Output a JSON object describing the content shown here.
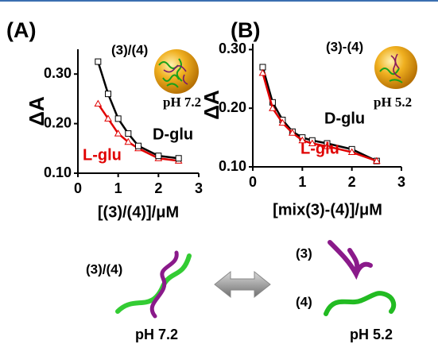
{
  "chart_data": [
    {
      "type": "line",
      "panel": "(A)",
      "subtitle": "(3)/(4)",
      "annotation": "pH 7.2",
      "x_label": "[(3)/(4)]/μM",
      "y_label": "ΔA",
      "x": [
        0.5,
        0.75,
        1.0,
        1.25,
        1.5,
        2.0,
        2.5
      ],
      "series": [
        {
          "name": "L-glu",
          "color": "#e00000",
          "marker": "triangle",
          "values": [
            0.24,
            0.21,
            0.18,
            0.163,
            0.15,
            0.13,
            0.125
          ]
        },
        {
          "name": "D-glu",
          "color": "#000000",
          "marker": "square",
          "values": [
            0.325,
            0.26,
            0.21,
            0.18,
            0.155,
            0.135,
            0.13
          ]
        }
      ],
      "xlim": [
        0,
        3
      ],
      "xticks": [
        0,
        1,
        2,
        3
      ],
      "ylim": [
        0.1,
        0.35
      ],
      "yticks": [
        {
          "value": 0.1,
          "label": "0.10"
        },
        {
          "value": 0.2,
          "label": "0.20"
        },
        {
          "value": 0.3,
          "label": "0.30"
        }
      ]
    },
    {
      "type": "line",
      "panel": "(B)",
      "subtitle": "(3)-(4)",
      "annotation": "pH 5.2",
      "x_label": "[mix(3)-(4)]/μM",
      "y_label": "ΔA",
      "x": [
        0.2,
        0.4,
        0.6,
        0.8,
        1.0,
        1.2,
        1.5,
        2.0,
        2.5
      ],
      "series": [
        {
          "name": "D-glu",
          "color": "#000000",
          "marker": "square",
          "values": [
            0.27,
            0.21,
            0.18,
            0.16,
            0.15,
            0.145,
            0.14,
            0.13,
            0.11
          ]
        },
        {
          "name": "L-glu",
          "color": "#e00000",
          "marker": "triangle",
          "values": [
            0.26,
            0.2,
            0.175,
            0.158,
            0.145,
            0.14,
            0.135,
            0.125,
            0.11
          ]
        }
      ],
      "xlim": [
        0,
        3
      ],
      "xticks": [
        0,
        1,
        2,
        3
      ],
      "ylim": [
        0.1,
        0.31
      ],
      "yticks": [
        {
          "value": 0.1,
          "label": "0.10"
        },
        {
          "value": 0.2,
          "label": "0.20"
        },
        {
          "value": 0.3,
          "label": "0.30"
        }
      ]
    }
  ],
  "illustration": {
    "left_label": "(3)/(4)",
    "left_ph": "pH 7.2",
    "right_top_label": "(3)",
    "right_bottom_label": "(4)",
    "right_ph": "pH 5.2"
  }
}
